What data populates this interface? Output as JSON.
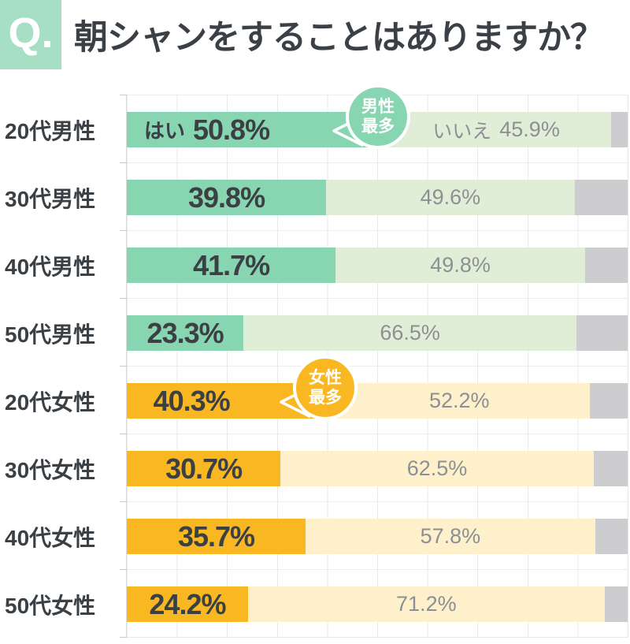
{
  "header": {
    "q_label": "Q.",
    "title": "朝シャンをすることはありますか？"
  },
  "chart_data": {
    "type": "bar",
    "orientation": "horizontal",
    "stacked": true,
    "xlim": [
      0,
      100
    ],
    "grid": true,
    "categories": [
      "20代男性",
      "30代男性",
      "40代男性",
      "50代男性",
      "20代女性",
      "30代女性",
      "40代女性",
      "50代女性"
    ],
    "groups": [
      "male",
      "male",
      "male",
      "male",
      "female",
      "female",
      "female",
      "female"
    ],
    "series": [
      {
        "name": "はい",
        "values": [
          50.8,
          39.8,
          41.7,
          23.3,
          40.3,
          30.7,
          35.7,
          24.2
        ]
      },
      {
        "name": "いいえ",
        "values": [
          45.9,
          49.6,
          49.8,
          66.5,
          52.2,
          62.5,
          57.8,
          71.2
        ]
      }
    ],
    "series_names_shown_on_first_row_only": true,
    "unlabeled_gray_remainder": [
      3.3,
      10.6,
      8.5,
      10.2,
      7.5,
      6.8,
      6.5,
      4.6
    ],
    "annotations": [
      {
        "row": 0,
        "lines": [
          "男性",
          "最多"
        ]
      },
      {
        "row": 4,
        "lines": [
          "女性",
          "最多"
        ]
      }
    ],
    "colors": {
      "header_badge": "#a6dfc4",
      "male_yes": "#87d5b1",
      "male_no": "#e1eed7",
      "female_yes": "#f9b822",
      "female_no": "#fdf0cb",
      "remainder": "#cdccce",
      "dark_text": "#3b4045",
      "light_text": "#8c9094"
    }
  }
}
